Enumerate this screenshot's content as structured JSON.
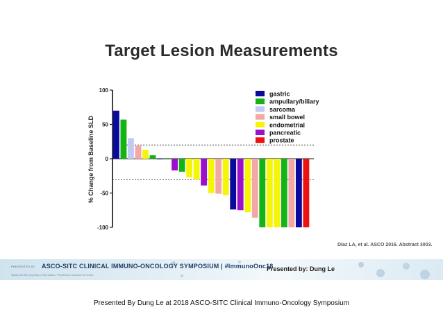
{
  "slide": {
    "title": "Target Lesion Measurements",
    "citation": "Diaz LA, et al. ASCO 2016. Abstract 3003.",
    "banner": {
      "presented_at": "PRESENTED AT:",
      "event": "ASCO-SITC CLINICAL IMMUNO-ONCOLOGY SYMPOSIUM | #ImmunoOnc18",
      "note": "Slides are the property of the author. Permission required for reuse.",
      "presenter": "Presented by:  Dung Le"
    },
    "footer": "Presented By Dung Le at 2018 ASCO-SITC Clinical Immuno-Oncology Symposium"
  },
  "chart_data": {
    "type": "bar",
    "title": "",
    "xlabel": "",
    "ylabel": "% Change from Baseline SLD",
    "ylim": [
      -100,
      100
    ],
    "yticks": [
      100,
      50,
      0,
      -50,
      -100
    ],
    "reference_lines": [
      20,
      -30
    ],
    "legend_position": "top-right",
    "series": [
      {
        "name": "gastric",
        "color": "#0a0a9c"
      },
      {
        "name": "ampullary/biliary",
        "color": "#14b414"
      },
      {
        "name": "sarcoma",
        "color": "#c3c9f5"
      },
      {
        "name": "small bowel",
        "color": "#f4a7a7"
      },
      {
        "name": "endometrial",
        "color": "#f5f50a"
      },
      {
        "name": "pancreatic",
        "color": "#9b10cc"
      },
      {
        "name": "prostate",
        "color": "#ee1111"
      }
    ],
    "bars": [
      {
        "series": "gastric",
        "value": 70
      },
      {
        "series": "ampullary/biliary",
        "value": 57
      },
      {
        "series": "sarcoma",
        "value": 30
      },
      {
        "series": "small bowel",
        "value": 19
      },
      {
        "series": "endometrial",
        "value": 13
      },
      {
        "series": "ampullary/biliary",
        "value": 5
      },
      {
        "series": "gastric",
        "value": 0
      },
      {
        "series": "ampullary/biliary",
        "value": -1
      },
      {
        "series": "pancreatic",
        "value": -17
      },
      {
        "series": "ampullary/biliary",
        "value": -19
      },
      {
        "series": "endometrial",
        "value": -27
      },
      {
        "series": "endometrial",
        "value": -30
      },
      {
        "series": "pancreatic",
        "value": -39
      },
      {
        "series": "endometrial",
        "value": -50
      },
      {
        "series": "small bowel",
        "value": -51
      },
      {
        "series": "endometrial",
        "value": -53
      },
      {
        "series": "gastric",
        "value": -74
      },
      {
        "series": "pancreatic",
        "value": -75
      },
      {
        "series": "endometrial",
        "value": -78
      },
      {
        "series": "small bowel",
        "value": -86
      },
      {
        "series": "ampullary/biliary",
        "value": -100
      },
      {
        "series": "endometrial",
        "value": -100
      },
      {
        "series": "endometrial",
        "value": -100
      },
      {
        "series": "ampullary/biliary",
        "value": -100
      },
      {
        "series": "small bowel",
        "value": -100
      },
      {
        "series": "gastric",
        "value": -100
      },
      {
        "series": "prostate",
        "value": -100
      }
    ]
  }
}
